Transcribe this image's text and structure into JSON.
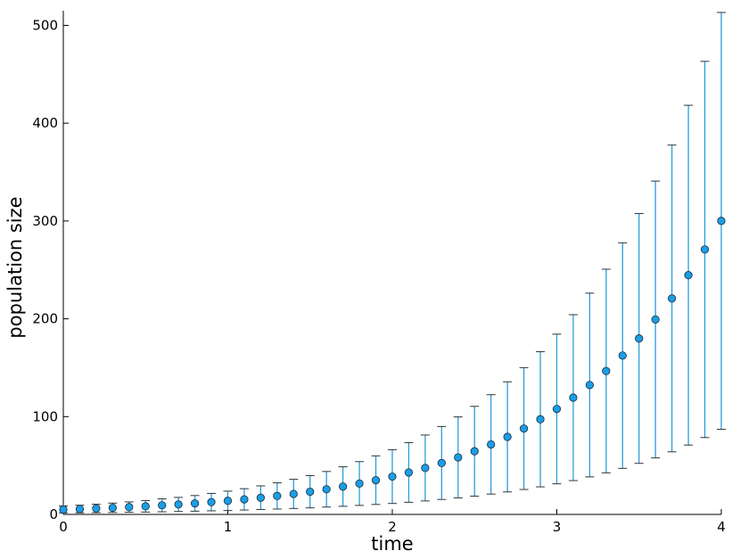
{
  "chart_data": {
    "type": "errorbar",
    "x_label": "time",
    "y_label": "population size",
    "x": [
      0,
      0.1,
      0.2,
      0.3,
      0.4,
      0.5,
      0.6,
      0.7,
      0.8,
      0.9,
      1,
      1.1,
      1.2,
      1.3,
      1.4,
      1.5,
      1.6,
      1.7,
      1.8,
      1.9,
      2,
      2.1,
      2.2,
      2.3,
      2.4,
      2.5,
      2.6,
      2.7,
      2.8,
      2.9,
      3,
      3.1,
      3.2,
      3.3,
      3.4,
      3.5,
      3.6,
      3.7,
      3.8,
      3.9,
      4
    ],
    "series": [
      {
        "color": "#1a9ee5",
        "error_color": "#2a9fde",
        "cap_color": "#333333",
        "values": [
          5.0,
          5.5,
          6.1,
          6.8,
          7.5,
          8.3,
          9.3,
          10.2,
          11.3,
          12.6,
          13.9,
          15.4,
          17.1,
          18.9,
          21.0,
          23.2,
          25.7,
          28.5,
          31.6,
          35.0,
          38.7,
          42.9,
          47.5,
          52.6,
          58.3,
          64.6,
          71.6,
          79.3,
          87.8,
          97.3,
          107.8,
          119.4,
          132.3,
          146.6,
          162.4,
          179.9,
          199.3,
          220.8,
          244.6,
          270.9,
          300.1
        ],
        "lower": [
          1.5,
          1.6,
          1.8,
          2.0,
          2.2,
          2.4,
          2.7,
          3.0,
          3.3,
          3.7,
          4.0,
          4.5,
          5.0,
          5.5,
          6.1,
          6.7,
          7.5,
          8.3,
          9.2,
          10.2,
          11.2,
          12.4,
          13.8,
          15.3,
          16.9,
          18.7,
          20.8,
          23.0,
          25.5,
          28.2,
          31.3,
          34.6,
          38.4,
          42.5,
          47.1,
          52.2,
          57.8,
          64.0,
          70.9,
          78.6,
          87.0
        ],
        "upper": [
          8.6,
          9.4,
          10.4,
          11.6,
          12.8,
          14.2,
          15.9,
          17.4,
          19.3,
          21.5,
          23.8,
          26.3,
          29.2,
          32.3,
          35.9,
          39.7,
          43.9,
          48.7,
          54.0,
          59.9,
          66.2,
          73.4,
          81.2,
          89.9,
          99.7,
          110.5,
          122.4,
          135.6,
          150.1,
          166.4,
          184.3,
          204.2,
          226.2,
          250.7,
          277.7,
          307.6,
          340.8,
          377.6,
          418.3,
          463.2,
          513.2
        ]
      }
    ],
    "xlim": [
      0,
      4
    ],
    "xticks": [
      0,
      1,
      2,
      3,
      4
    ],
    "ylim": [
      0,
      515
    ],
    "yticks": [
      0,
      100,
      200,
      300,
      400,
      500
    ],
    "grid": false
  }
}
